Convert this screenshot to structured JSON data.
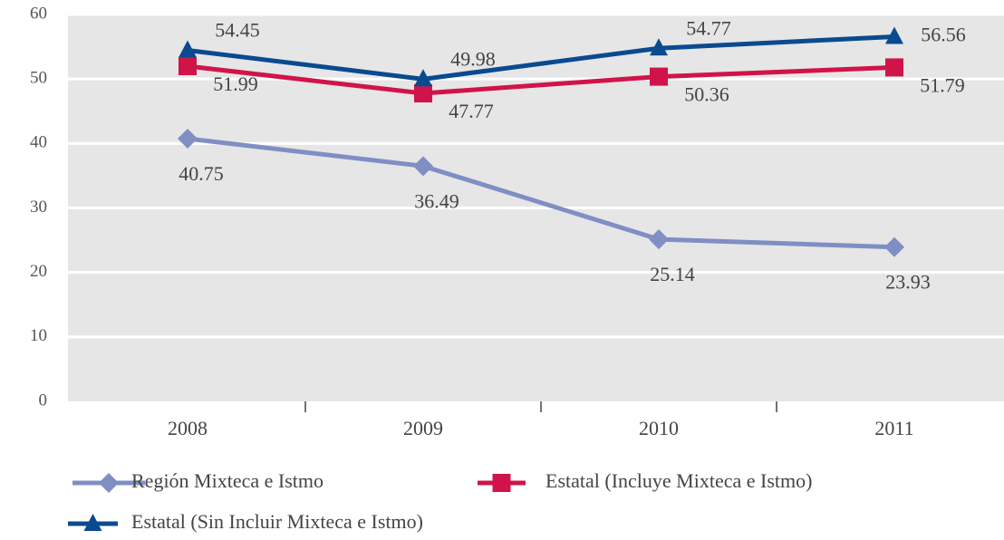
{
  "chart_data": {
    "type": "line",
    "categories": [
      "2008",
      "2009",
      "2010",
      "2011"
    ],
    "series": [
      {
        "name": "Región Mixteca e Istmo",
        "color": "#7f8fc4",
        "marker": "diamond",
        "values": [
          40.75,
          36.49,
          25.14,
          23.93
        ]
      },
      {
        "name": "Estatal (Incluye Mixteca e Istmo)",
        "color": "#d0144a",
        "marker": "square",
        "values": [
          51.99,
          47.77,
          50.36,
          51.79
        ]
      },
      {
        "name": "Estatal (Sin Incluir Mixteca e Istmo)",
        "color": "#0a4a8f",
        "marker": "triangle",
        "values": [
          54.45,
          49.98,
          54.77,
          56.56
        ]
      }
    ],
    "ylim": [
      0,
      60
    ],
    "yticks": [
      0,
      10,
      20,
      30,
      40,
      50,
      60
    ],
    "grid": true,
    "legend": "bottom"
  }
}
